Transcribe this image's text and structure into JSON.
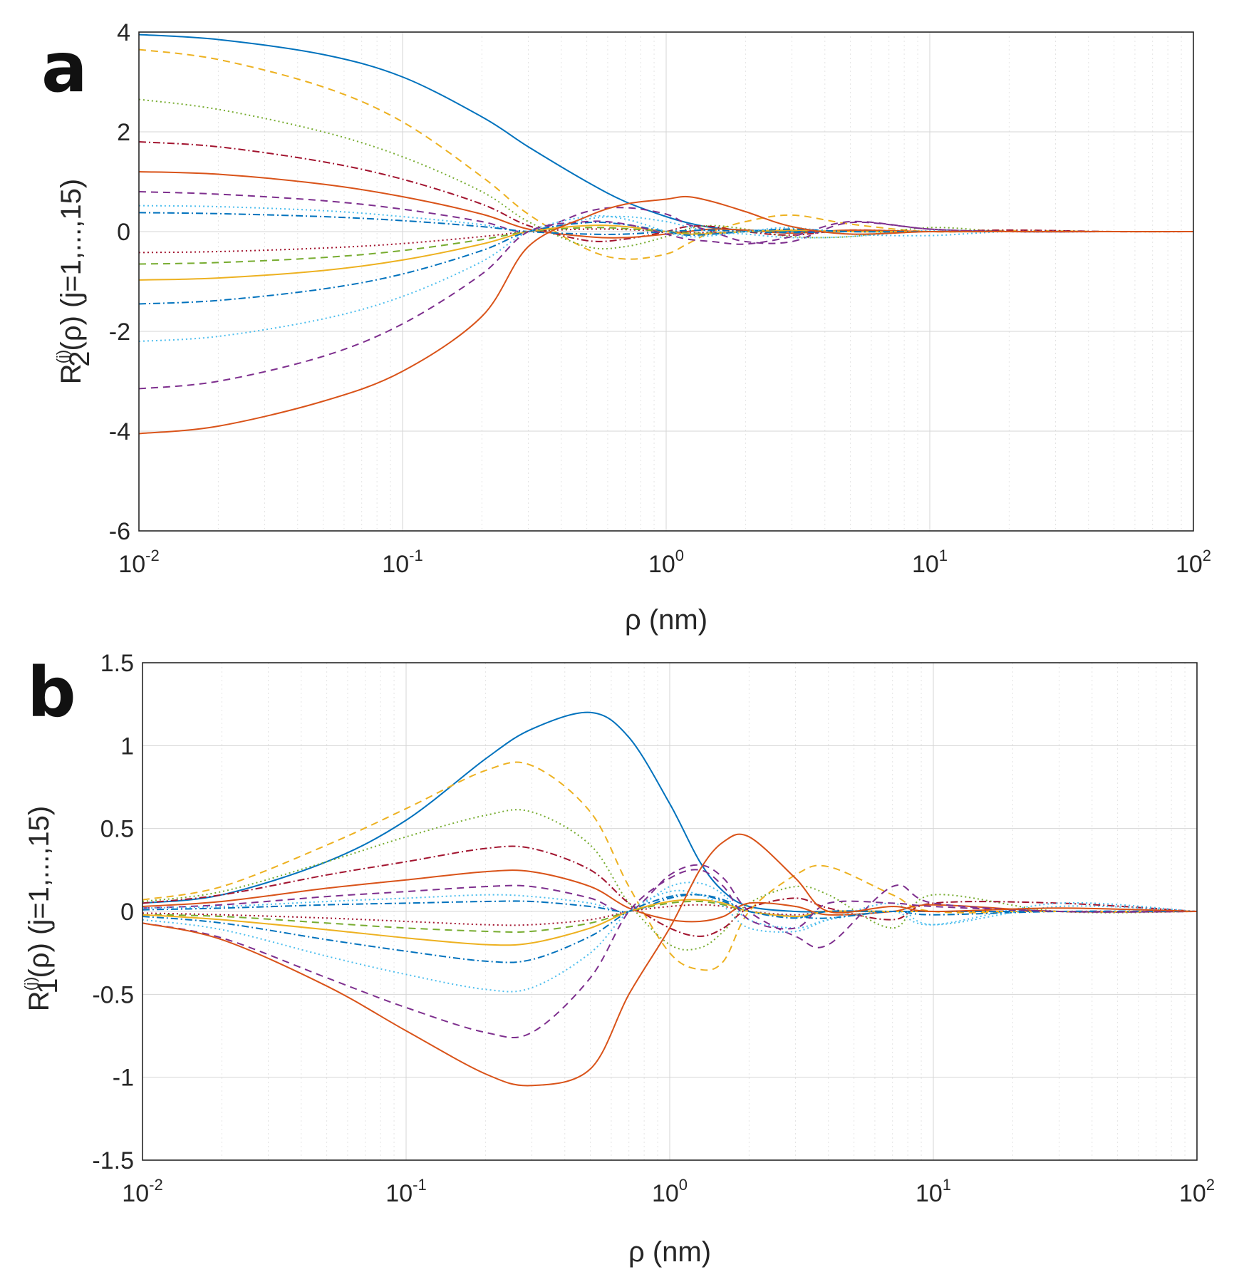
{
  "chart_data": [
    {
      "type": "line",
      "panel_label": "a",
      "xscale": "log",
      "xlim": [
        0.01,
        100
      ],
      "ylim": [
        -6,
        4
      ],
      "xtick_base": "10",
      "xtick_exponents": [
        "-2",
        "-1",
        "0",
        "1",
        "2"
      ],
      "yticks": [
        "-6",
        "-4",
        "-2",
        "0",
        "2",
        "4"
      ],
      "xlabel": "ρ (nm)",
      "ylabel": {
        "base": "R",
        "sub": "2",
        "sup": "(j)",
        "rest": "(ρ) (j=1,...,15)"
      },
      "grid": true,
      "legend": "none",
      "x_samples": [
        0.01,
        0.02,
        0.05,
        0.1,
        0.2,
        0.3,
        0.5,
        0.7,
        1.0,
        1.2,
        1.5,
        2,
        3,
        5,
        10,
        20,
        50,
        100
      ],
      "series": [
        {
          "name": "j=1",
          "color": "#0072BD",
          "dash": "",
          "values": [
            3.95,
            3.85,
            3.55,
            3.1,
            2.3,
            1.7,
            1.0,
            0.6,
            0.3,
            0.18,
            0.08,
            0.03,
            0.01,
            0.0,
            0.0,
            0.0,
            0.0,
            0.0
          ]
        },
        {
          "name": "j=2",
          "color": "#EDB120",
          "dash": "10 7",
          "values": [
            3.65,
            3.45,
            2.9,
            2.2,
            1.1,
            0.35,
            -0.35,
            -0.55,
            -0.45,
            -0.25,
            0.0,
            0.2,
            0.33,
            0.15,
            0.0,
            0.02,
            0.0,
            0.0
          ]
        },
        {
          "name": "j=3",
          "color": "#77AC30",
          "dash": "2 4",
          "values": [
            2.65,
            2.45,
            2.0,
            1.5,
            0.8,
            0.2,
            -0.3,
            -0.3,
            -0.1,
            0.05,
            0.12,
            0.05,
            -0.1,
            -0.1,
            0.08,
            0.0,
            0.0,
            0.0
          ]
        },
        {
          "name": "j=4",
          "color": "#A2142F",
          "dash": "10 4 2 4",
          "values": [
            1.8,
            1.7,
            1.4,
            1.05,
            0.55,
            0.12,
            -0.18,
            -0.15,
            0.0,
            0.1,
            0.1,
            0.0,
            -0.07,
            0.03,
            0.0,
            0.03,
            0.0,
            0.0
          ]
        },
        {
          "name": "j=5",
          "color": "#D95319",
          "dash": "",
          "values": [
            1.2,
            1.15,
            0.95,
            0.7,
            0.35,
            0.05,
            -0.1,
            -0.12,
            -0.05,
            0.0,
            0.05,
            0.03,
            -0.03,
            0.03,
            0.0,
            0.0,
            0.0,
            0.0
          ]
        },
        {
          "name": "j=6",
          "color": "#7E2F8E",
          "dash": "10 7",
          "values": [
            0.8,
            0.75,
            0.62,
            0.45,
            0.2,
            0.0,
            0.4,
            0.48,
            0.35,
            0.15,
            0.0,
            -0.2,
            -0.2,
            0.18,
            0.05,
            0.0,
            0.0,
            0.0
          ]
        },
        {
          "name": "j=7",
          "color": "#4DBEEE",
          "dash": "2 4",
          "values": [
            0.52,
            0.5,
            0.42,
            0.3,
            0.14,
            0.0,
            0.25,
            0.3,
            0.2,
            0.1,
            0.0,
            -0.05,
            -0.12,
            -0.1,
            0.02,
            0.0,
            0.0,
            0.0
          ]
        },
        {
          "name": "j=8",
          "color": "#0072BD",
          "dash": "10 4 2 4",
          "values": [
            0.38,
            0.36,
            0.3,
            0.22,
            0.1,
            0.0,
            -0.05,
            -0.05,
            0.0,
            0.02,
            0.03,
            0.0,
            -0.02,
            0.0,
            0.0,
            0.0,
            0.0,
            0.0
          ]
        },
        {
          "name": "j=9",
          "color": "#A2142F",
          "dash": "2 4",
          "values": [
            -0.42,
            -0.4,
            -0.33,
            -0.24,
            -0.1,
            0.0,
            0.05,
            0.04,
            0.0,
            -0.02,
            -0.02,
            0.0,
            0.02,
            0.0,
            0.0,
            0.0,
            0.0,
            0.0
          ]
        },
        {
          "name": "j=10",
          "color": "#77AC30",
          "dash": "10 7",
          "values": [
            -0.65,
            -0.62,
            -0.52,
            -0.38,
            -0.16,
            0.0,
            0.08,
            0.06,
            0.0,
            -0.03,
            -0.03,
            0.0,
            0.02,
            0.0,
            0.0,
            0.0,
            0.0,
            0.0
          ]
        },
        {
          "name": "j=11",
          "color": "#EDB120",
          "dash": "",
          "values": [
            -0.97,
            -0.93,
            -0.78,
            -0.57,
            -0.25,
            0.0,
            0.12,
            0.1,
            0.0,
            -0.05,
            -0.04,
            0.0,
            0.03,
            0.0,
            0.0,
            0.0,
            0.0,
            0.0
          ]
        },
        {
          "name": "j=12",
          "color": "#0072BD",
          "dash": "10 4 2 4",
          "values": [
            -1.45,
            -1.38,
            -1.15,
            -0.85,
            -0.38,
            0.0,
            0.18,
            0.14,
            0.0,
            -0.07,
            -0.05,
            0.0,
            0.05,
            0.0,
            0.0,
            0.0,
            0.0,
            0.0
          ]
        },
        {
          "name": "j=13",
          "color": "#4DBEEE",
          "dash": "2 4",
          "values": [
            -2.2,
            -2.1,
            -1.75,
            -1.3,
            -0.6,
            0.0,
            0.3,
            0.25,
            0.0,
            -0.1,
            -0.08,
            0.0,
            0.08,
            -0.05,
            -0.08,
            0.0,
            0.0,
            0.0
          ]
        },
        {
          "name": "j=14",
          "color": "#7E2F8E",
          "dash": "10 7",
          "values": [
            -3.15,
            -3.0,
            -2.5,
            -1.85,
            -0.85,
            0.0,
            0.2,
            0.15,
            -0.05,
            -0.15,
            -0.2,
            -0.25,
            -0.1,
            0.2,
            0.05,
            0.0,
            0.0,
            0.0
          ]
        },
        {
          "name": "j=15",
          "color": "#D95319",
          "dash": "",
          "values": [
            -4.05,
            -3.9,
            -3.4,
            -2.8,
            -1.7,
            -0.3,
            0.3,
            0.55,
            0.65,
            0.7,
            0.6,
            0.4,
            0.1,
            -0.05,
            0.0,
            0.0,
            0.0,
            0.0
          ]
        }
      ]
    },
    {
      "type": "line",
      "panel_label": "b",
      "xscale": "log",
      "xlim": [
        0.01,
        100
      ],
      "ylim": [
        -1.5,
        1.5
      ],
      "xtick_base": "10",
      "xtick_exponents": [
        "-2",
        "-1",
        "0",
        "1",
        "2"
      ],
      "yticks": [
        "-1.5",
        "-1",
        "-0.5",
        "0",
        "0.5",
        "1",
        "1.5"
      ],
      "xlabel": "ρ (nm)",
      "ylabel": {
        "base": "R",
        "sub": "1",
        "sup": "(j)",
        "rest": "(ρ) (j=1,...,15)"
      },
      "grid": true,
      "legend": "none",
      "x_samples": [
        0.01,
        0.02,
        0.05,
        0.1,
        0.2,
        0.3,
        0.5,
        0.7,
        1.0,
        1.3,
        1.6,
        2,
        3,
        4,
        7,
        10,
        30,
        100
      ],
      "series": [
        {
          "name": "j=1",
          "color": "#0072BD",
          "dash": "",
          "values": [
            0.05,
            0.1,
            0.3,
            0.55,
            0.92,
            1.1,
            1.2,
            1.05,
            0.65,
            0.3,
            0.12,
            0.03,
            0.0,
            0.0,
            0.0,
            0.0,
            0.0,
            0.0
          ]
        },
        {
          "name": "j=2",
          "color": "#EDB120",
          "dash": "10 7",
          "values": [
            0.07,
            0.15,
            0.4,
            0.62,
            0.85,
            0.88,
            0.6,
            0.15,
            -0.25,
            -0.35,
            -0.3,
            0.0,
            0.22,
            0.27,
            0.1,
            0.0,
            0.0,
            0.0
          ]
        },
        {
          "name": "j=3",
          "color": "#77AC30",
          "dash": "2 4",
          "values": [
            0.06,
            0.12,
            0.3,
            0.45,
            0.58,
            0.6,
            0.4,
            0.05,
            -0.2,
            -0.22,
            -0.12,
            0.05,
            0.15,
            0.1,
            -0.1,
            0.1,
            0.0,
            0.0
          ]
        },
        {
          "name": "j=4",
          "color": "#A2142F",
          "dash": "10 4 2 4",
          "values": [
            0.05,
            0.1,
            0.22,
            0.3,
            0.38,
            0.38,
            0.25,
            0.05,
            -0.1,
            -0.15,
            -0.1,
            0.02,
            0.08,
            0.02,
            -0.05,
            0.05,
            0.05,
            0.0
          ]
        },
        {
          "name": "j=5",
          "color": "#D95319",
          "dash": "",
          "values": [
            0.03,
            0.06,
            0.14,
            0.19,
            0.24,
            0.24,
            0.15,
            0.02,
            -0.05,
            -0.06,
            -0.03,
            0.05,
            0.03,
            -0.02,
            0.0,
            0.04,
            0.0,
            0.0
          ]
        },
        {
          "name": "j=6",
          "color": "#7E2F8E",
          "dash": "10 7",
          "values": [
            0.02,
            0.04,
            0.09,
            0.12,
            0.15,
            0.15,
            0.08,
            0.0,
            0.22,
            0.28,
            0.2,
            0.0,
            -0.15,
            -0.2,
            0.15,
            0.05,
            0.0,
            0.0
          ]
        },
        {
          "name": "j=7",
          "color": "#4DBEEE",
          "dash": "2 4",
          "values": [
            0.02,
            0.03,
            0.06,
            0.08,
            0.1,
            0.09,
            0.05,
            0.0,
            0.15,
            0.17,
            0.1,
            -0.05,
            -0.1,
            -0.05,
            0.0,
            -0.08,
            0.05,
            0.0
          ]
        },
        {
          "name": "j=8",
          "color": "#0072BD",
          "dash": "10 4 2 4",
          "values": [
            0.01,
            0.02,
            0.04,
            0.05,
            0.06,
            0.06,
            0.03,
            0.0,
            0.08,
            0.1,
            0.06,
            0.0,
            -0.03,
            -0.04,
            0.0,
            -0.02,
            0.0,
            0.0
          ]
        },
        {
          "name": "j=9",
          "color": "#A2142F",
          "dash": "2 4",
          "values": [
            -0.01,
            -0.02,
            -0.04,
            -0.06,
            -0.08,
            -0.08,
            -0.05,
            0.0,
            0.03,
            0.04,
            0.03,
            0.0,
            -0.02,
            0.0,
            0.0,
            0.0,
            0.0,
            0.0
          ]
        },
        {
          "name": "j=10",
          "color": "#77AC30",
          "dash": "10 7",
          "values": [
            -0.02,
            -0.03,
            -0.07,
            -0.1,
            -0.12,
            -0.12,
            -0.07,
            0.0,
            0.05,
            0.06,
            0.04,
            0.0,
            -0.03,
            0.0,
            0.0,
            0.0,
            0.0,
            0.0
          ]
        },
        {
          "name": "j=11",
          "color": "#EDB120",
          "dash": "",
          "values": [
            -0.02,
            -0.05,
            -0.11,
            -0.16,
            -0.2,
            -0.19,
            -0.1,
            0.0,
            0.06,
            0.07,
            0.05,
            0.0,
            -0.03,
            0.0,
            0.0,
            0.0,
            0.0,
            0.0
          ]
        },
        {
          "name": "j=12",
          "color": "#0072BD",
          "dash": "10 4 2 4",
          "values": [
            -0.03,
            -0.07,
            -0.17,
            -0.24,
            -0.3,
            -0.29,
            -0.15,
            0.0,
            0.09,
            0.1,
            0.07,
            0.0,
            -0.04,
            0.0,
            0.0,
            0.0,
            0.0,
            0.0
          ]
        },
        {
          "name": "j=13",
          "color": "#4DBEEE",
          "dash": "2 4",
          "values": [
            -0.05,
            -0.11,
            -0.27,
            -0.38,
            -0.47,
            -0.46,
            -0.25,
            0.0,
            0.12,
            0.1,
            0.03,
            -0.1,
            -0.12,
            -0.05,
            0.05,
            -0.08,
            0.03,
            0.0
          ]
        },
        {
          "name": "j=14",
          "color": "#7E2F8E",
          "dash": "10 7",
          "values": [
            -0.07,
            -0.16,
            -0.4,
            -0.58,
            -0.73,
            -0.73,
            -0.4,
            0.0,
            0.2,
            0.25,
            0.15,
            -0.05,
            -0.1,
            0.05,
            0.05,
            0.03,
            0.0,
            0.0
          ]
        },
        {
          "name": "j=15",
          "color": "#D95319",
          "dash": "",
          "values": [
            -0.07,
            -0.17,
            -0.45,
            -0.72,
            -0.98,
            -1.05,
            -0.95,
            -0.5,
            -0.1,
            0.25,
            0.42,
            0.45,
            0.2,
            0.0,
            0.03,
            0.0,
            0.02,
            0.0
          ]
        }
      ]
    }
  ]
}
